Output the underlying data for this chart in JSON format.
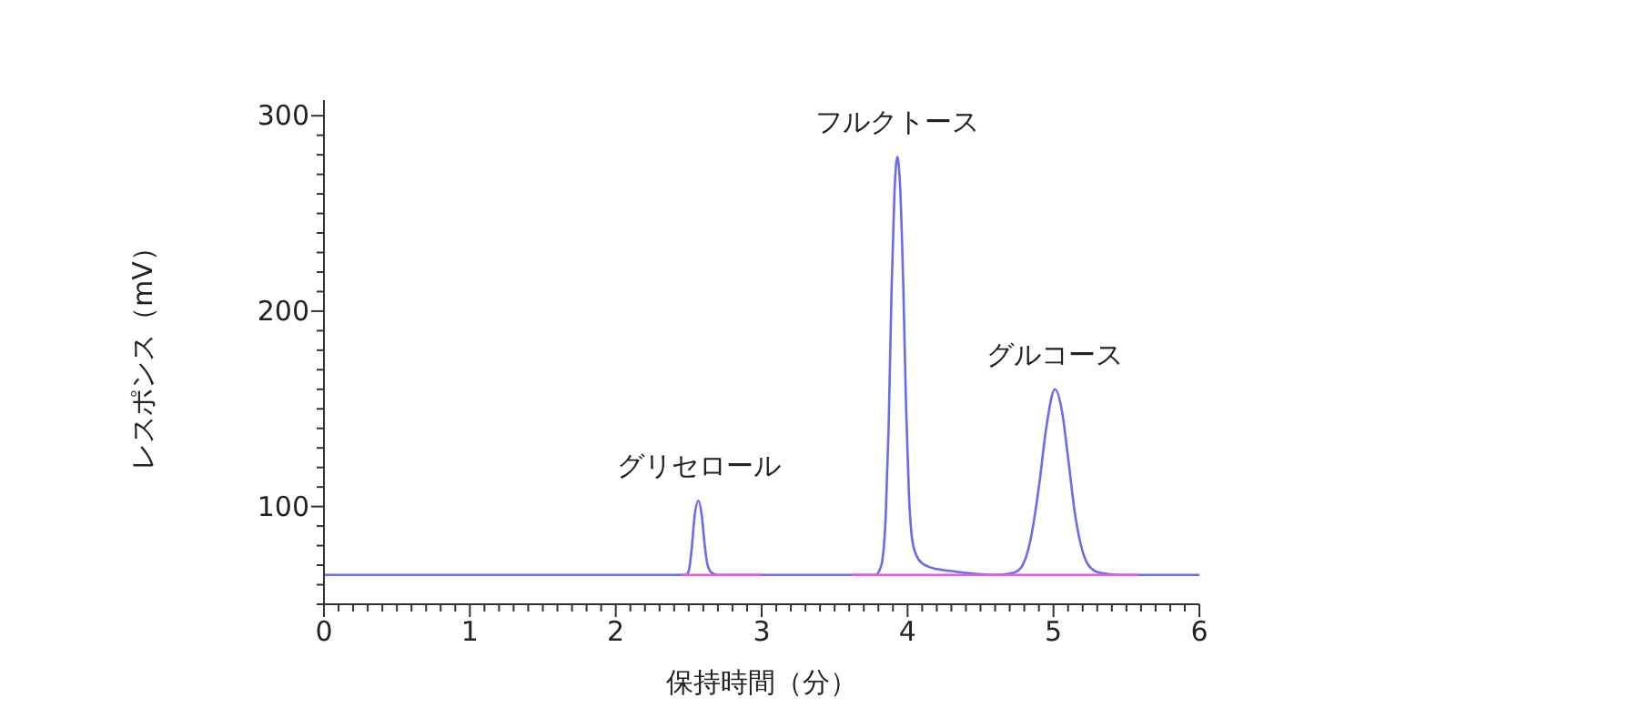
{
  "chart_data": {
    "type": "line",
    "xlabel": "保持時間（分）",
    "ylabel": "レスポンス（mV）",
    "xlim": [
      0,
      6
    ],
    "ylim": [
      50,
      308
    ],
    "xticks": [
      0,
      {
        "value": 0.1,
        "label": null
      },
      {
        "value": 0.2,
        "label": null
      },
      {
        "value": 0.3,
        "label": null
      },
      {
        "value": 0.4,
        "label": null
      },
      {
        "value": 0.5,
        "label": null
      },
      {
        "value": 0.6,
        "label": null
      },
      {
        "value": 0.7,
        "label": null
      },
      {
        "value": 0.8,
        "label": null
      },
      {
        "value": 0.9,
        "label": null
      },
      1,
      {
        "value": 1.1,
        "label": null
      },
      {
        "value": 1.2,
        "label": null
      },
      {
        "value": 1.3,
        "label": null
      },
      {
        "value": 1.4,
        "label": null
      },
      {
        "value": 1.5,
        "label": null
      },
      {
        "value": 1.6,
        "label": null
      },
      {
        "value": 1.7,
        "label": null
      },
      {
        "value": 1.8,
        "label": null
      },
      {
        "value": 1.9,
        "label": null
      },
      2,
      {
        "value": 2.1,
        "label": null
      },
      {
        "value": 2.2,
        "label": null
      },
      {
        "value": 2.3,
        "label": null
      },
      {
        "value": 2.4,
        "label": null
      },
      {
        "value": 2.5,
        "label": null
      },
      {
        "value": 2.6,
        "label": null
      },
      {
        "value": 2.7,
        "label": null
      },
      {
        "value": 2.8,
        "label": null
      },
      {
        "value": 2.9,
        "label": null
      },
      3,
      {
        "value": 3.1,
        "label": null
      },
      {
        "value": 3.2,
        "label": null
      },
      {
        "value": 3.3,
        "label": null
      },
      {
        "value": 3.4,
        "label": null
      },
      {
        "value": 3.5,
        "label": null
      },
      {
        "value": 3.6,
        "label": null
      },
      {
        "value": 3.7,
        "label": null
      },
      {
        "value": 3.8,
        "label": null
      },
      {
        "value": 3.9,
        "label": null
      },
      4,
      {
        "value": 4.1,
        "label": null
      },
      {
        "value": 4.2,
        "label": null
      },
      {
        "value": 4.3,
        "label": null
      },
      {
        "value": 4.4,
        "label": null
      },
      {
        "value": 4.5,
        "label": null
      },
      {
        "value": 4.6,
        "label": null
      },
      {
        "value": 4.7,
        "label": null
      },
      {
        "value": 4.8,
        "label": null
      },
      {
        "value": 4.9,
        "label": null
      },
      5,
      {
        "value": 5.1,
        "label": null
      },
      {
        "value": 5.2,
        "label": null
      },
      {
        "value": 5.3,
        "label": null
      },
      {
        "value": 5.4,
        "label": null
      },
      {
        "value": 5.5,
        "label": null
      },
      {
        "value": 5.6,
        "label": null
      },
      {
        "value": 5.7,
        "label": null
      },
      {
        "value": 5.8,
        "label": null
      },
      {
        "value": 5.9,
        "label": null
      },
      6
    ],
    "yticks": [
      {
        "value": 50,
        "label": null
      },
      {
        "value": 60,
        "label": null
      },
      {
        "value": 70,
        "label": null
      },
      {
        "value": 80,
        "label": null
      },
      {
        "value": 90,
        "label": null
      },
      100,
      {
        "value": 110,
        "label": null
      },
      {
        "value": 120,
        "label": null
      },
      {
        "value": 130,
        "label": null
      },
      {
        "value": 140,
        "label": null
      },
      {
        "value": 150,
        "label": null
      },
      {
        "value": 160,
        "label": null
      },
      {
        "value": 170,
        "label": null
      },
      {
        "value": 180,
        "label": null
      },
      {
        "value": 190,
        "label": null
      },
      200,
      {
        "value": 210,
        "label": null
      },
      {
        "value": 220,
        "label": null
      },
      {
        "value": 230,
        "label": null
      },
      {
        "value": 240,
        "label": null
      },
      {
        "value": 250,
        "label": null
      },
      {
        "value": 260,
        "label": null
      },
      {
        "value": 270,
        "label": null
      },
      {
        "value": 280,
        "label": null
      },
      {
        "value": 290,
        "label": null
      },
      300
    ],
    "grid": false,
    "legend": false,
    "marker": "none",
    "line_style": "solid",
    "series": [
      {
        "color": "#6a6aee",
        "x": [
          0,
          2.48,
          2.5,
          2.52,
          2.54,
          2.567,
          2.59,
          2.61,
          2.63,
          2.66,
          2.7,
          3.78,
          3.82,
          3.85,
          3.87,
          3.89,
          3.91,
          3.93,
          3.95,
          3.97,
          3.99,
          4.01,
          4.03,
          4.06,
          4.1,
          4.2,
          4.3,
          4.4,
          4.6,
          4.72,
          4.78,
          4.84,
          4.9,
          4.95,
          5.01,
          5.06,
          5.1,
          5.15,
          5.2,
          5.25,
          5.32,
          5.45,
          6
        ],
        "values": [
          65,
          65,
          67,
          78,
          95,
          103,
          95,
          80,
          70,
          66,
          65,
          65,
          70,
          95,
          140,
          210,
          260,
          279,
          262,
          215,
          150,
          105,
          84,
          75,
          71,
          68,
          67,
          66,
          65,
          66,
          69,
          82,
          110,
          140,
          160,
          148,
          125,
          95,
          77,
          69,
          66,
          65,
          65
        ]
      },
      {
        "color": "#ee55ee",
        "x": [
          2.45,
          3.0
        ],
        "values": [
          65,
          65
        ]
      },
      {
        "color": "#ee55ee",
        "x": [
          3.62,
          4.65,
          5.58
        ],
        "values": [
          65,
          65,
          65
        ]
      }
    ],
    "annotations": [
      {
        "text": "グリセロール",
        "x": 2.567,
        "y": 103
      },
      {
        "text": "フルクトース",
        "x": 3.93,
        "y": 279
      },
      {
        "text": "グルコース",
        "x": 5.01,
        "y": 160
      }
    ]
  }
}
